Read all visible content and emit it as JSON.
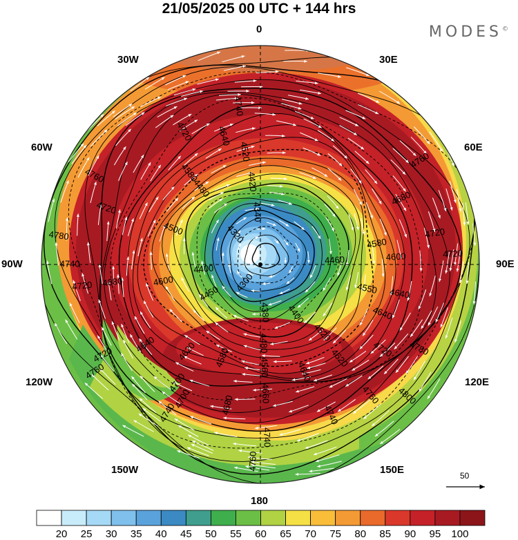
{
  "title": "21/05/2025  00 UTC  + 144 hrs",
  "brand": "MODES",
  "brand_mark": "©",
  "meridian_labels": {
    "n0": "0",
    "w30": "30W",
    "e30": "30E",
    "w60": "60W",
    "e60": "60E",
    "w90": "90W",
    "e90": "90E",
    "w120": "120W",
    "e120": "120E",
    "w150": "150W",
    "e150": "150E",
    "s180": "180"
  },
  "contour_labels": [
    {
      "text": "4740",
      "r": 0.73,
      "a": -8
    },
    {
      "text": "4720",
      "r": 0.7,
      "a": -30
    },
    {
      "text": "4640",
      "r": 0.61,
      "a": -16
    },
    {
      "text": "4580",
      "r": 0.53,
      "a": -38
    },
    {
      "text": "4520",
      "r": 0.52,
      "a": -8
    },
    {
      "text": "4420",
      "r": 0.38,
      "a": -6
    },
    {
      "text": "4480",
      "r": 0.44,
      "a": -38
    },
    {
      "text": "4500",
      "r": 0.43,
      "a": -68
    },
    {
      "text": "4340",
      "r": 0.24,
      "a": -4
    },
    {
      "text": "4320",
      "r": 0.18,
      "a": -40
    },
    {
      "text": "4300",
      "r": 0.11,
      "a": -140
    },
    {
      "text": "4380",
      "r": 0.22,
      "a": 175
    },
    {
      "text": "4400",
      "r": 0.28,
      "a": 145
    },
    {
      "text": "4450",
      "r": 0.27,
      "a": -120
    },
    {
      "text": "4480",
      "r": 0.36,
      "a": 178
    },
    {
      "text": "4520",
      "r": 0.42,
      "a": 138
    },
    {
      "text": "4560",
      "r": 0.47,
      "a": 178
    },
    {
      "text": "4580",
      "r": 0.46,
      "a": -158
    },
    {
      "text": "4620",
      "r": 0.52,
      "a": -140
    },
    {
      "text": "4640",
      "r": 0.64,
      "a": -125
    },
    {
      "text": "4640",
      "r": 0.53,
      "a": 158
    },
    {
      "text": "4620",
      "r": 0.56,
      "a": 140
    },
    {
      "text": "4640",
      "r": 0.6,
      "a": 112
    },
    {
      "text": "4660",
      "r": 0.59,
      "a": 178
    },
    {
      "text": "4680",
      "r": 0.66,
      "a": -167
    },
    {
      "text": "4700",
      "r": 0.66,
      "a": -145
    },
    {
      "text": "4700",
      "r": 0.71,
      "a": -150
    },
    {
      "text": "4720",
      "r": 0.83,
      "a": -120
    },
    {
      "text": "4740",
      "r": 0.8,
      "a": -148
    },
    {
      "text": "4760",
      "r": 0.9,
      "a": -123
    },
    {
      "text": "4740",
      "r": 0.79,
      "a": 178
    },
    {
      "text": "4760",
      "r": 0.9,
      "a": -178
    },
    {
      "text": "4740",
      "r": 0.76,
      "a": 155
    },
    {
      "text": "4760",
      "r": 0.78,
      "a": 140
    },
    {
      "text": "4780",
      "r": 0.82,
      "a": 118
    },
    {
      "text": "4800",
      "r": 0.9,
      "a": 132
    },
    {
      "text": "4720",
      "r": 0.68,
      "a": 125
    },
    {
      "text": "4600",
      "r": 0.45,
      "a": -100
    },
    {
      "text": "4680",
      "r": 0.68,
      "a": -97
    },
    {
      "text": "4720",
      "r": 0.82,
      "a": -97
    },
    {
      "text": "4740",
      "r": 0.87,
      "a": -90
    },
    {
      "text": "4780",
      "r": 0.93,
      "a": -82
    },
    {
      "text": "4760",
      "r": 0.86,
      "a": -62
    },
    {
      "text": "4720",
      "r": 0.75,
      "a": -70
    },
    {
      "text": "4580",
      "r": 0.54,
      "a": 80
    },
    {
      "text": "4600",
      "r": 0.62,
      "a": 87
    },
    {
      "text": "4640",
      "r": 0.65,
      "a": 102
    },
    {
      "text": "4680",
      "r": 0.71,
      "a": 65
    },
    {
      "text": "4720",
      "r": 0.81,
      "a": 80
    },
    {
      "text": "4720",
      "r": 0.88,
      "a": 87
    },
    {
      "text": "4760",
      "r": 0.87,
      "a": 57
    },
    {
      "text": "4460",
      "r": 0.34,
      "a": 87
    },
    {
      "text": "4550",
      "r": 0.5,
      "a": 103
    },
    {
      "text": "4400",
      "r": 0.26,
      "a": -95
    }
  ],
  "colorbar": {
    "labels": [
      "20",
      "25",
      "30",
      "35",
      "40",
      "45",
      "50",
      "55",
      "60",
      "65",
      "70",
      "75",
      "80",
      "85",
      "90",
      "95",
      "100"
    ],
    "colors": [
      "#ffffff",
      "#c9ecfb",
      "#a5d9f6",
      "#7fc0ec",
      "#5aa2db",
      "#3b8ac3",
      "#3f9e8e",
      "#3fae4c",
      "#6cbf46",
      "#b0d243",
      "#f5e045",
      "#f9bd3a",
      "#f49a34",
      "#e96a2a",
      "#d9382b",
      "#c42228",
      "#a81a22",
      "#8c1519"
    ]
  },
  "wind_scale": {
    "label": "50"
  }
}
